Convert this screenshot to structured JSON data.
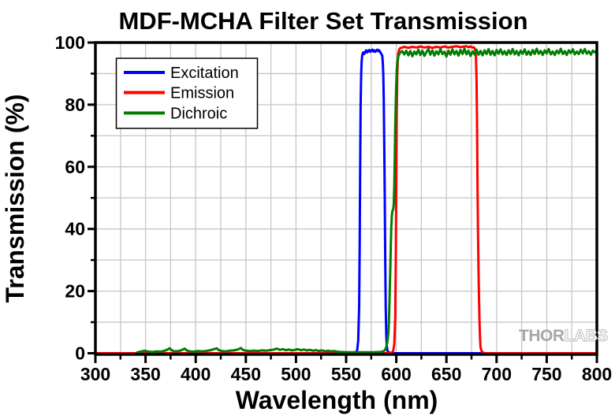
{
  "watermark": {
    "thor": "THOR",
    "labs": "LABS"
  },
  "colors": {
    "excitation": "#0000ff",
    "emission": "#ff0000",
    "dichroic": "#007d00",
    "grid": "#c6c6c6",
    "axis": "#000000",
    "watermark_thor": "#a6a6a6",
    "watermark_labs_outline": "#bdbdbd"
  },
  "chart_data": {
    "type": "line",
    "title": "MDF-MCHA Filter Set Transmission",
    "xlabel": "Wavelength (nm)",
    "ylabel": "Transmission (%)",
    "xlim": [
      300,
      800
    ],
    "ylim": [
      0,
      100
    ],
    "x_major_ticks": [
      300,
      350,
      400,
      450,
      500,
      550,
      600,
      650,
      700,
      750,
      800
    ],
    "x_minor_step": 25,
    "y_major_ticks": [
      0,
      20,
      40,
      60,
      80,
      100
    ],
    "y_minor_step": 10,
    "grid": {
      "on": true,
      "x_step": 25,
      "y_step": 10
    },
    "legend": {
      "position": "top-left"
    },
    "series": [
      {
        "name": "Excitation",
        "color": "#0000ff",
        "points": [
          [
            300,
            0
          ],
          [
            550,
            0
          ],
          [
            558,
            0
          ],
          [
            560,
            0.3
          ],
          [
            561,
            1
          ],
          [
            562,
            4
          ],
          [
            563,
            15
          ],
          [
            563.5,
            35
          ],
          [
            564,
            60
          ],
          [
            564.5,
            80
          ],
          [
            565,
            90
          ],
          [
            565.5,
            94
          ],
          [
            566,
            96
          ],
          [
            567,
            96.8
          ],
          [
            568,
            96.3
          ],
          [
            569,
            97
          ],
          [
            570,
            97.5
          ],
          [
            571,
            96.8
          ],
          [
            572,
            97.3
          ],
          [
            573,
            97.6
          ],
          [
            574,
            97
          ],
          [
            575,
            97.4
          ],
          [
            576,
            97.7
          ],
          [
            577,
            97.1
          ],
          [
            578,
            97.5
          ],
          [
            579,
            97
          ],
          [
            580,
            97.4
          ],
          [
            581,
            97.7
          ],
          [
            582,
            97.2
          ],
          [
            583,
            97.5
          ],
          [
            584,
            96.9
          ],
          [
            585,
            96.4
          ],
          [
            586,
            95.8
          ],
          [
            586.5,
            94
          ],
          [
            587,
            90
          ],
          [
            587.5,
            82
          ],
          [
            588,
            68
          ],
          [
            588.5,
            50
          ],
          [
            589,
            30
          ],
          [
            589.5,
            15
          ],
          [
            590,
            6
          ],
          [
            590.5,
            2.5
          ],
          [
            591,
            1
          ],
          [
            592,
            0.4
          ],
          [
            593,
            0.2
          ],
          [
            595,
            0
          ],
          [
            800,
            0
          ]
        ]
      },
      {
        "name": "Emission",
        "color": "#ff0000",
        "points": [
          [
            300,
            0
          ],
          [
            590,
            0
          ],
          [
            594,
            0
          ],
          [
            596,
            0.3
          ],
          [
            597,
            0.8
          ],
          [
            598,
            3
          ],
          [
            599,
            12
          ],
          [
            599.5,
            30
          ],
          [
            600,
            55
          ],
          [
            600.5,
            78
          ],
          [
            601,
            90
          ],
          [
            601.5,
            94
          ],
          [
            602,
            96.5
          ],
          [
            603,
            97.8
          ],
          [
            604,
            98.2
          ],
          [
            606,
            98.4
          ],
          [
            608,
            98.6
          ],
          [
            612,
            98.3
          ],
          [
            616,
            98.6
          ],
          [
            620,
            98.4
          ],
          [
            624,
            98.7
          ],
          [
            628,
            98.4
          ],
          [
            632,
            98.6
          ],
          [
            636,
            98.3
          ],
          [
            640,
            98.6
          ],
          [
            644,
            98.4
          ],
          [
            648,
            98.7
          ],
          [
            652,
            98.4
          ],
          [
            656,
            98.6
          ],
          [
            660,
            98.8
          ],
          [
            664,
            98.5
          ],
          [
            668,
            98.7
          ],
          [
            670,
            98.8
          ],
          [
            672,
            98.5
          ],
          [
            674,
            98.7
          ],
          [
            676,
            98.4
          ],
          [
            677,
            98.5
          ],
          [
            678,
            98.2
          ],
          [
            679,
            97
          ],
          [
            679.5,
            95
          ],
          [
            680,
            88
          ],
          [
            680.5,
            75
          ],
          [
            681,
            55
          ],
          [
            681.5,
            38
          ],
          [
            682,
            27
          ],
          [
            682.5,
            18
          ],
          [
            683,
            10
          ],
          [
            683.5,
            5
          ],
          [
            684,
            2
          ],
          [
            685,
            0.8
          ],
          [
            686,
            0.3
          ],
          [
            688,
            0
          ],
          [
            800,
            0
          ]
        ]
      },
      {
        "name": "Dichroic",
        "color": "#007d00",
        "points": [
          [
            341,
            0.2
          ],
          [
            345,
            0.5
          ],
          [
            349,
            0.8
          ],
          [
            353,
            0.5
          ],
          [
            357,
            0.4
          ],
          [
            361,
            0.6
          ],
          [
            365,
            0.5
          ],
          [
            369,
            0.8
          ],
          [
            372,
            1.2
          ],
          [
            374,
            1.6
          ],
          [
            376,
            1
          ],
          [
            379,
            0.6
          ],
          [
            383,
            0.7
          ],
          [
            386,
            1
          ],
          [
            389,
            1.5
          ],
          [
            391,
            0.9
          ],
          [
            394,
            0.6
          ],
          [
            398,
            0.5
          ],
          [
            402,
            0.7
          ],
          [
            406,
            0.6
          ],
          [
            410,
            0.7
          ],
          [
            414,
            0.9
          ],
          [
            418,
            1.3
          ],
          [
            421,
            1.6
          ],
          [
            423,
            1
          ],
          [
            426,
            0.7
          ],
          [
            430,
            0.6
          ],
          [
            434,
            0.8
          ],
          [
            438,
            0.9
          ],
          [
            442,
            1.2
          ],
          [
            445,
            1.7
          ],
          [
            447,
            1.1
          ],
          [
            450,
            0.8
          ],
          [
            454,
            0.7
          ],
          [
            458,
            0.8
          ],
          [
            462,
            0.7
          ],
          [
            466,
            0.9
          ],
          [
            470,
            0.8
          ],
          [
            474,
            1
          ],
          [
            478,
            1.2
          ],
          [
            481,
            1.5
          ],
          [
            484,
            1.1
          ],
          [
            487,
            1.3
          ],
          [
            490,
            1
          ],
          [
            493,
            1.2
          ],
          [
            496,
            0.9
          ],
          [
            499,
            1.1
          ],
          [
            502,
            1.3
          ],
          [
            505,
            1
          ],
          [
            508,
            1.2
          ],
          [
            511,
            0.9
          ],
          [
            514,
            1.1
          ],
          [
            517,
            0.8
          ],
          [
            520,
            1
          ],
          [
            523,
            0.7
          ],
          [
            526,
            0.9
          ],
          [
            529,
            0.6
          ],
          [
            532,
            0.8
          ],
          [
            535,
            0.6
          ],
          [
            538,
            0.7
          ],
          [
            541,
            0.5
          ],
          [
            544,
            0.4
          ],
          [
            548,
            0.35
          ],
          [
            552,
            0.3
          ],
          [
            556,
            0.3
          ],
          [
            560,
            0.3
          ],
          [
            564,
            0.3
          ],
          [
            568,
            0.3
          ],
          [
            572,
            0.3
          ],
          [
            576,
            0.3
          ],
          [
            580,
            0.35
          ],
          [
            584,
            0.4
          ],
          [
            586,
            0.5
          ],
          [
            588,
            0.8
          ],
          [
            589,
            1.2
          ],
          [
            590,
            2
          ],
          [
            591,
            3.5
          ],
          [
            592,
            6
          ],
          [
            592.5,
            9
          ],
          [
            593,
            14
          ],
          [
            593.5,
            20
          ],
          [
            594,
            27
          ],
          [
            594.5,
            34
          ],
          [
            595,
            40
          ],
          [
            595.5,
            44
          ],
          [
            596,
            45.5
          ],
          [
            596.5,
            46
          ],
          [
            597,
            46.5
          ],
          [
            597.5,
            48
          ],
          [
            598,
            54
          ],
          [
            598.5,
            63
          ],
          [
            599,
            73
          ],
          [
            599.5,
            81
          ],
          [
            600,
            87
          ],
          [
            600.5,
            91
          ],
          [
            601,
            93.5
          ],
          [
            602,
            95.5
          ],
          [
            603,
            96.3
          ],
          [
            604,
            96.8
          ],
          [
            606,
            97.2
          ],
          [
            608,
            96.2
          ],
          [
            610,
            97.4
          ],
          [
            612,
            95.9
          ],
          [
            614,
            97.3
          ],
          [
            616,
            95.6
          ],
          [
            618,
            97.1
          ],
          [
            620,
            96.2
          ],
          [
            622,
            97.7
          ],
          [
            624,
            96
          ],
          [
            626,
            97.4
          ],
          [
            628,
            95.7
          ],
          [
            630,
            96.9
          ],
          [
            632,
            97.9
          ],
          [
            634,
            96.1
          ],
          [
            636,
            97.5
          ],
          [
            638,
            95.8
          ],
          [
            640,
            97.2
          ],
          [
            642,
            96.2
          ],
          [
            644,
            97.9
          ],
          [
            646,
            96.3
          ],
          [
            648,
            97
          ],
          [
            650,
            95.5
          ],
          [
            652,
            97.4
          ],
          [
            654,
            96.1
          ],
          [
            656,
            97.8
          ],
          [
            658,
            96.2
          ],
          [
            660,
            97.3
          ],
          [
            662,
            95.8
          ],
          [
            664,
            97.6
          ],
          [
            666,
            96.3
          ],
          [
            668,
            98
          ],
          [
            670,
            96.2
          ],
          [
            672,
            97.4
          ],
          [
            674,
            95.7
          ],
          [
            676,
            97.1
          ],
          [
            678,
            96.2
          ],
          [
            680,
            97.7
          ],
          [
            682,
            96.1
          ],
          [
            684,
            97.3
          ],
          [
            686,
            95.9
          ],
          [
            688,
            97.5
          ],
          [
            690,
            96.3
          ],
          [
            692,
            97.9
          ],
          [
            694,
            96.1
          ],
          [
            696,
            97.3
          ],
          [
            698,
            95.9
          ],
          [
            700,
            97.6
          ],
          [
            702,
            96.4
          ],
          [
            704,
            97.8
          ],
          [
            706,
            96.2
          ],
          [
            708,
            97.2
          ],
          [
            710,
            96
          ],
          [
            712,
            97.5
          ],
          [
            714,
            96.3
          ],
          [
            716,
            97.9
          ],
          [
            718,
            96.2
          ],
          [
            720,
            97.3
          ],
          [
            722,
            95.9
          ],
          [
            724,
            97.4
          ],
          [
            726,
            96.4
          ],
          [
            728,
            97.8
          ],
          [
            730,
            96.1
          ],
          [
            732,
            97.2
          ],
          [
            734,
            96
          ],
          [
            736,
            97.6
          ],
          [
            738,
            96.3
          ],
          [
            740,
            98
          ],
          [
            742,
            96.4
          ],
          [
            744,
            97.3
          ],
          [
            746,
            96
          ],
          [
            748,
            97.5
          ],
          [
            750,
            96.5
          ],
          [
            752,
            97.9
          ],
          [
            754,
            96.2
          ],
          [
            756,
            97.1
          ],
          [
            758,
            96
          ],
          [
            760,
            97.4
          ],
          [
            762,
            96.5
          ],
          [
            764,
            98
          ],
          [
            766,
            96.3
          ],
          [
            768,
            97.2
          ],
          [
            770,
            96
          ],
          [
            772,
            97.5
          ],
          [
            774,
            96.6
          ],
          [
            776,
            97.8
          ],
          [
            778,
            96.2
          ],
          [
            780,
            97.1
          ],
          [
            782,
            96.3
          ],
          [
            784,
            97.7
          ],
          [
            786,
            96.5
          ],
          [
            788,
            97.9
          ],
          [
            790,
            96.4
          ],
          [
            792,
            97.2
          ],
          [
            794,
            96.1
          ],
          [
            796,
            97.4
          ],
          [
            798,
            96.8
          ],
          [
            800,
            97.5
          ]
        ]
      }
    ]
  }
}
